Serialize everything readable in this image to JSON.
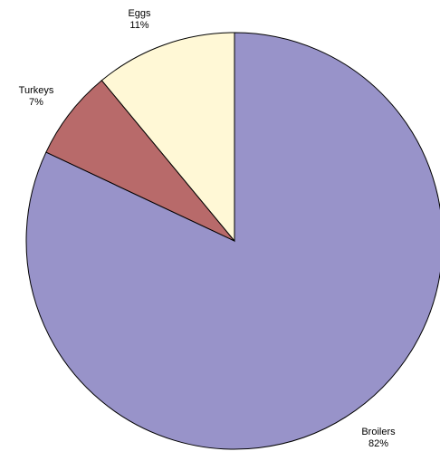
{
  "chart_data": {
    "type": "pie",
    "slices": [
      {
        "label": "Broilers",
        "value": 82,
        "value_label": "82%",
        "color": "#9893c9"
      },
      {
        "label": "Turkeys",
        "value": 7,
        "value_label": "7%",
        "color": "#b86a6a"
      },
      {
        "label": "Eggs",
        "value": 11,
        "value_label": "11%",
        "color": "#fff8d6"
      }
    ],
    "start_angle": "12 o'clock",
    "direction": "clockwise",
    "legend": "none"
  }
}
